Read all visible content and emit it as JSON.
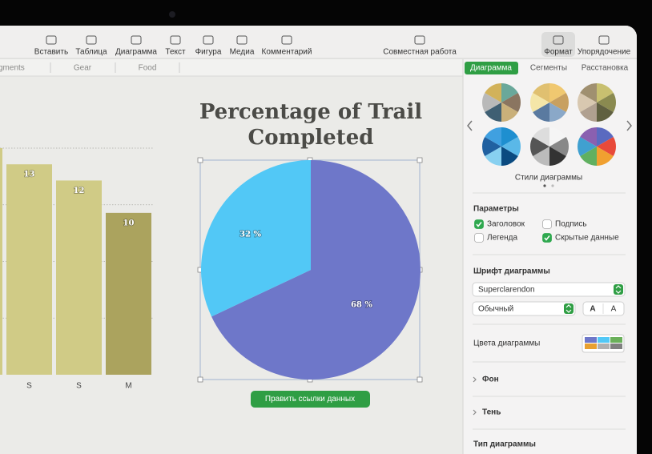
{
  "toolbar": {
    "items": [
      "Вставить",
      "Таблица",
      "Диаграмма",
      "Текст",
      "Фигура",
      "Медиа",
      "Комментарий",
      "Совместная работа",
      "Формат",
      "Упорядочение"
    ]
  },
  "sheet_tabs": [
    "gments",
    "Gear",
    "Food"
  ],
  "panel_tabs": [
    "Диаграмма",
    "Сегменты",
    "Расстановка"
  ],
  "chart_data": [
    {
      "type": "bar",
      "categories": [
        null,
        "S",
        "S",
        "M"
      ],
      "values": [
        14,
        13,
        12,
        10
      ],
      "colors": [
        "#d0cb86",
        "#d0cb86",
        "#d0cb86",
        "#aba35e"
      ],
      "ylim": [
        0,
        14
      ],
      "yticks": [
        3.5,
        7,
        10.5,
        14
      ],
      "grid": true
    },
    {
      "type": "pie",
      "title": "Percentage of Trail Completed",
      "values": [
        68,
        32
      ],
      "value_labels": [
        "68 %",
        "32 %"
      ],
      "colors": [
        "#6e77c9",
        "#52c8f6"
      ]
    }
  ],
  "edit_button": "Править ссылки данных",
  "sidebar": {
    "styles_label": "Стили диаграммы",
    "options": {
      "title": "Параметры",
      "checkboxes": [
        {
          "label": "Заголовок",
          "checked": true
        },
        {
          "label": "Подпись",
          "checked": false
        },
        {
          "label": "Легенда",
          "checked": false
        },
        {
          "label": "Скрытые данные",
          "checked": true
        }
      ]
    },
    "font": {
      "title": "Шрифт диаграммы",
      "family": "Superclarendon",
      "style": "Обычный",
      "smaller": "A",
      "larger": "A"
    },
    "colors_label": "Цвета диаграммы",
    "sections": [
      "Фон",
      "Тень"
    ],
    "chart_type_label": "Тип диаграммы"
  }
}
